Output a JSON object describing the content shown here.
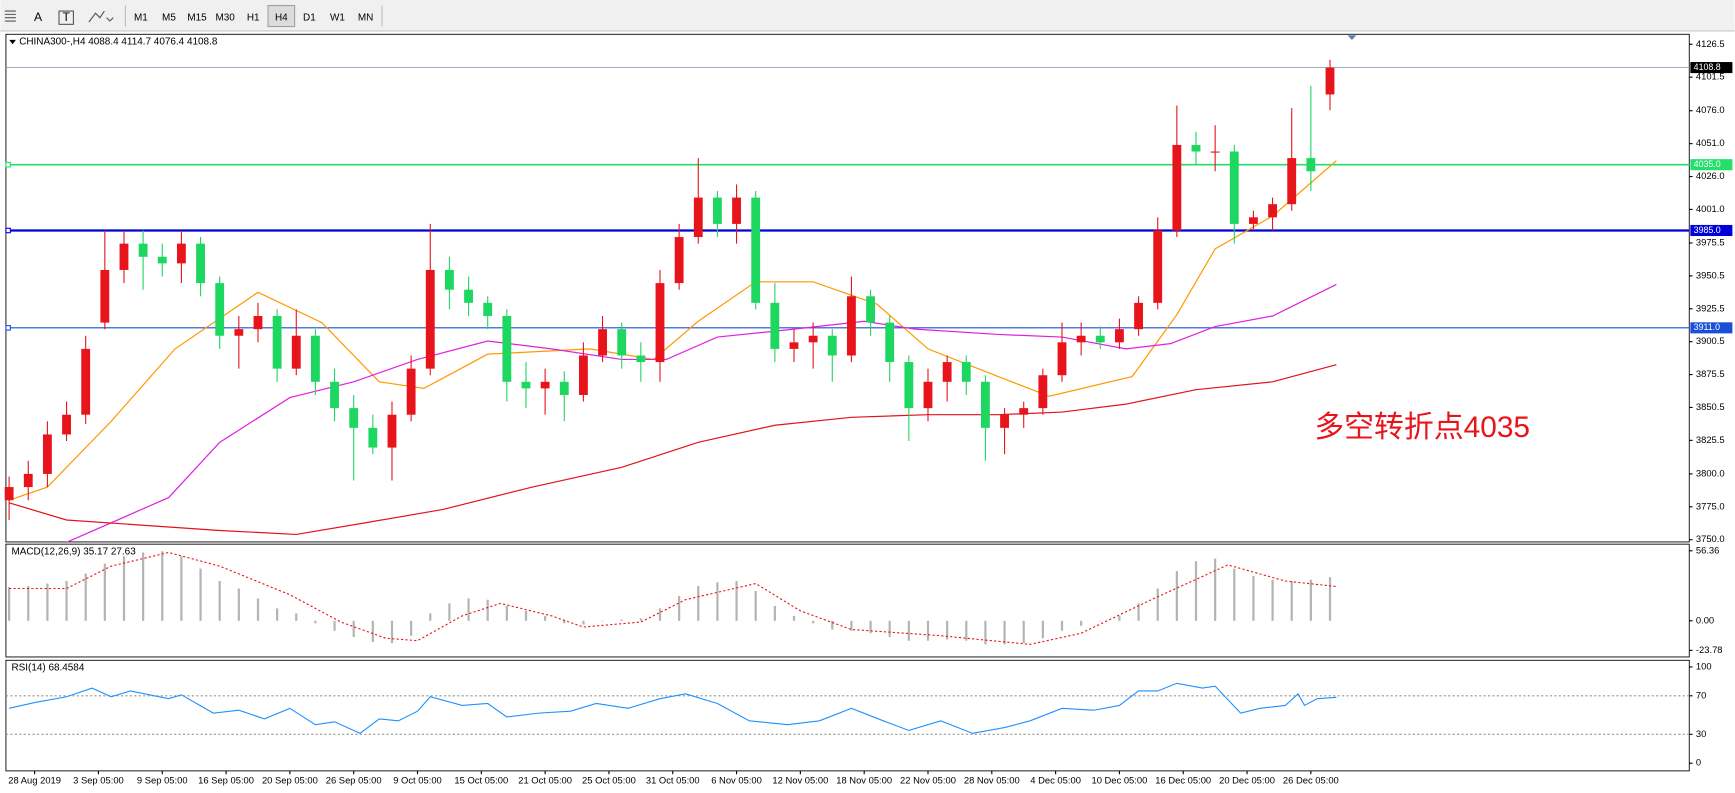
{
  "toolbar": {
    "tools": [
      "A",
      "T"
    ],
    "timeframes": [
      "M1",
      "M5",
      "M15",
      "M30",
      "H1",
      "H4",
      "D1",
      "W1",
      "MN"
    ]
  },
  "chart_data": [
    {
      "type": "candlestick",
      "title": "CHINA300-,H4  4088.4 4114.7 4076.4 4108.8",
      "x": [
        0,
        3,
        6,
        9,
        12,
        15,
        18,
        21,
        24,
        27,
        30,
        33,
        36,
        39,
        42,
        45,
        48,
        51,
        54,
        57,
        60,
        63,
        66,
        69,
        72,
        75,
        78,
        81,
        84,
        87,
        90,
        93,
        96,
        99,
        102,
        105,
        108,
        111,
        114,
        117,
        120,
        123,
        126,
        129,
        132,
        135,
        138,
        141,
        144,
        147,
        150,
        153,
        156,
        159,
        162,
        165,
        168,
        171,
        174,
        177,
        180,
        183,
        186,
        189,
        192,
        195,
        198,
        201,
        204,
        207
      ],
      "open": [
        3780,
        3790,
        3800,
        3830,
        3845,
        3915,
        3955,
        3975,
        3965,
        3960,
        3975,
        3945,
        3905,
        3910,
        3920,
        3880,
        3905,
        3870,
        3850,
        3835,
        3820,
        3845,
        3880,
        3955,
        3940,
        3930,
        3920,
        3870,
        3865,
        3870,
        3860,
        3890,
        3910,
        3890,
        3885,
        3945,
        3980,
        4010,
        3990,
        4010,
        3930,
        3895,
        3900,
        3905,
        3890,
        3935,
        3915,
        3885,
        3850,
        3870,
        3885,
        3870,
        3835,
        3845,
        3850,
        3875,
        3900,
        3905,
        3900,
        3910,
        3930,
        3985,
        4050,
        4045,
        4045,
        3990,
        3995,
        4005,
        4040,
        4088.4
      ],
      "high": [
        3798,
        3810,
        3840,
        3855,
        3905,
        3985,
        3985,
        3985,
        3975,
        3985,
        3980,
        3950,
        3920,
        3930,
        3925,
        3925,
        3910,
        3880,
        3860,
        3845,
        3855,
        3890,
        3990,
        3965,
        3950,
        3935,
        3925,
        3885,
        3880,
        3878,
        3900,
        3920,
        3915,
        3900,
        3955,
        3990,
        4040,
        4015,
        4020,
        4015,
        3945,
        3910,
        3915,
        3910,
        3950,
        3940,
        3920,
        3890,
        3880,
        3890,
        3890,
        3875,
        3850,
        3855,
        3880,
        3915,
        3915,
        3912,
        3918,
        3935,
        3995,
        4080,
        4060,
        4065,
        4050,
        4000,
        4010,
        4078,
        4095,
        4114.7
      ],
      "low": [
        3765,
        3780,
        3790,
        3825,
        3838,
        3910,
        3945,
        3940,
        3950,
        3945,
        3935,
        3895,
        3880,
        3900,
        3870,
        3875,
        3860,
        3840,
        3795,
        3815,
        3795,
        3840,
        3875,
        3925,
        3920,
        3910,
        3855,
        3850,
        3845,
        3840,
        3855,
        3885,
        3880,
        3870,
        3870,
        3940,
        3975,
        3980,
        3975,
        3925,
        3885,
        3885,
        3880,
        3870,
        3885,
        3905,
        3870,
        3825,
        3840,
        3855,
        3860,
        3810,
        3815,
        3835,
        3845,
        3870,
        3890,
        3895,
        3895,
        3905,
        3925,
        3980,
        4035,
        4030,
        3975,
        3985,
        3985,
        4000,
        4015,
        4076.4
      ],
      "close": [
        3790,
        3800,
        3830,
        3845,
        3895,
        3955,
        3975,
        3965,
        3960,
        3975,
        3945,
        3905,
        3910,
        3920,
        3880,
        3905,
        3870,
        3850,
        3835,
        3820,
        3845,
        3880,
        3955,
        3940,
        3930,
        3920,
        3870,
        3865,
        3870,
        3860,
        3890,
        3910,
        3890,
        3885,
        3945,
        3980,
        4010,
        3990,
        4010,
        3930,
        3895,
        3900,
        3905,
        3890,
        3935,
        3915,
        3885,
        3850,
        3870,
        3885,
        3870,
        3835,
        3845,
        3850,
        3875,
        3900,
        3905,
        3900,
        3910,
        3930,
        3985,
        4050,
        4045,
        4045,
        3990,
        3995,
        4005,
        4040,
        4030,
        4108.8
      ],
      "up_color": "#e8141b",
      "down_color": "#1ed760",
      "lines": [
        {
          "color": "#ff9900",
          "x": [
            0,
            6,
            16,
            26,
            39,
            49,
            58,
            65,
            75,
            91,
            101,
            108,
            117,
            126,
            136,
            144,
            155,
            163,
            176,
            183,
            189,
            198,
            208
          ],
          "values": [
            3780,
            3790,
            3840,
            3895,
            3938,
            3915,
            3870,
            3865,
            3891,
            3895,
            3887,
            3916,
            3946,
            3946,
            3929,
            3895,
            3874,
            3859,
            3874,
            3921,
            3971,
            3996,
            4038
          ]
        },
        {
          "color": "#e020e0",
          "x": [
            9,
            25,
            33,
            44,
            54,
            64,
            75,
            85,
            96,
            103,
            111,
            123,
            134,
            142,
            155,
            165,
            175,
            182,
            189,
            198,
            208
          ],
          "values": [
            3748,
            3782,
            3824,
            3858,
            3870,
            3887,
            3901,
            3895,
            3887,
            3887,
            3904,
            3910,
            3916,
            3910,
            3906,
            3904,
            3895,
            3899,
            3912,
            3920,
            3944
          ]
        },
        {
          "color": "#e0141b",
          "x": [
            0,
            9,
            21,
            33,
            45,
            56,
            68,
            82,
            96,
            108,
            120,
            132,
            144,
            155,
            165,
            175,
            186,
            198,
            208
          ],
          "values": [
            3778,
            3765,
            3761,
            3757,
            3754,
            3763,
            3773,
            3790,
            3805,
            3824,
            3837,
            3843,
            3845,
            3845,
            3847,
            3853,
            3864,
            3870,
            3883
          ]
        }
      ],
      "levels": [
        {
          "value": 4035,
          "label": "4035.0",
          "color": "#22e06a",
          "width": 1.5
        },
        {
          "value": 3985,
          "label": "3985.0",
          "color": "#0000d8",
          "width": 2
        },
        {
          "value": 3911,
          "label": "3911.0",
          "color": "#1a4fd6",
          "width": 1
        }
      ],
      "last_price": 4108.8,
      "annotation": "多空转折点4035",
      "annotation_color": "#e8141b",
      "xlim": [
        -0.5,
        263.3
      ],
      "ylim": [
        3748.3,
        4134.1
      ],
      "yticks": [
        4126.5,
        4101.5,
        {
          "value": 4076,
          "label": "4076.0"
        },
        {
          "value": 4051,
          "label": "4051.0"
        },
        {
          "value": 4026,
          "label": "4026.0"
        },
        {
          "value": 4001,
          "label": "4001.0"
        },
        3975.5,
        3950.5,
        3925.5,
        3900.5,
        3875.5,
        3850.5,
        3825.5,
        {
          "value": 3800,
          "label": "3800.0"
        },
        {
          "value": 3775,
          "label": "3775.0"
        },
        {
          "value": 3750,
          "label": "3750.0"
        }
      ]
    },
    {
      "type": "macd",
      "title": "MACD(12,26,9) 35.17 27.63",
      "x": [
        0,
        3,
        6,
        9,
        12,
        15,
        18,
        21,
        24,
        27,
        30,
        33,
        36,
        39,
        42,
        45,
        48,
        51,
        54,
        57,
        60,
        63,
        66,
        69,
        72,
        75,
        78,
        81,
        84,
        87,
        90,
        93,
        96,
        99,
        102,
        105,
        108,
        111,
        114,
        117,
        120,
        123,
        126,
        129,
        132,
        135,
        138,
        141,
        144,
        147,
        150,
        153,
        156,
        159,
        162,
        165,
        168,
        171,
        174,
        177,
        180,
        183,
        186,
        189,
        192,
        195,
        198,
        201,
        204,
        207
      ],
      "values": [
        27,
        28,
        30,
        32,
        38,
        46,
        52,
        55,
        56,
        52,
        42,
        32,
        26,
        18,
        10,
        6,
        -2,
        -8,
        -13,
        -17,
        -18,
        -12,
        6,
        14,
        18,
        17,
        12,
        8,
        4,
        -2,
        -3,
        0,
        1,
        2,
        10,
        20,
        28,
        31,
        32,
        24,
        12,
        4,
        -2,
        -7,
        -8,
        -10,
        -13,
        -16,
        -16,
        -15,
        -16,
        -19,
        -19,
        -18,
        -14,
        -8,
        -4,
        0,
        4,
        14,
        26,
        40,
        48,
        50,
        42,
        36,
        33,
        32,
        33,
        35.17
      ],
      "color": "#b4b4b4",
      "signal": {
        "color": "#e8141b",
        "x": [
          0,
          9,
          16,
          25,
          33,
          44,
          52,
          59,
          64,
          71,
          77,
          85,
          90,
          99,
          106,
          117,
          124,
          132,
          146,
          160,
          168,
          179,
          191,
          200,
          208
        ],
        "values": [
          26,
          26,
          44,
          55,
          44,
          21,
          -1,
          -14,
          -16,
          4,
          14,
          4,
          -5,
          -1,
          17,
          30,
          8,
          -7,
          -12,
          -19,
          -10,
          17,
          45,
          32,
          27.63
        ]
      },
      "xlim": [
        -0.5,
        263.3
      ],
      "ylim": [
        -29.1,
        61.7
      ],
      "yticks": [
        56.36,
        {
          "value": 0,
          "label": "0.00"
        },
        -23.78
      ]
    },
    {
      "type": "line",
      "title": "RSI(14) 68.4584",
      "x": [
        0,
        4,
        9,
        13,
        16,
        19,
        25,
        27,
        32,
        36,
        40,
        44,
        48,
        51,
        55,
        58,
        61,
        64,
        66,
        71,
        75,
        78,
        83,
        88,
        92,
        97,
        102,
        106,
        111,
        116,
        122,
        127,
        132,
        137,
        141,
        146,
        151,
        156,
        160,
        165,
        170,
        174,
        177,
        180,
        183,
        187,
        189,
        193,
        196,
        200,
        202,
        203,
        205,
        208
      ],
      "values": [
        57,
        63,
        69,
        78,
        69,
        75,
        67,
        71,
        52,
        55,
        46,
        57,
        40,
        43,
        31,
        46,
        44,
        54,
        69,
        60,
        62,
        48,
        52,
        54,
        62,
        57,
        67,
        72,
        62,
        44,
        40,
        44,
        57,
        44,
        34,
        44,
        31,
        37,
        44,
        57,
        55,
        60,
        75,
        75,
        83,
        78,
        80,
        52,
        57,
        60,
        72,
        60,
        67,
        68.4584
      ],
      "color": "#1e90ff",
      "levels": [
        70,
        30
      ],
      "xlim": [
        -0.5,
        263.3
      ],
      "ylim": [
        -8,
        106.9
      ],
      "yticks": [
        100,
        70,
        30,
        0
      ],
      "xticks": [
        {
          "value": 4,
          "label": "28 Aug 2019"
        },
        {
          "value": 14,
          "label": "3 Sep 05:00"
        },
        {
          "value": 24,
          "label": "9 Sep 05:00"
        },
        {
          "value": 34,
          "label": "16 Sep 05:00"
        },
        {
          "value": 44,
          "label": "20 Sep 05:00"
        },
        {
          "value": 54,
          "label": "26 Sep 05:00"
        },
        {
          "value": 64,
          "label": "9 Oct 05:00"
        },
        {
          "value": 74,
          "label": "15 Oct 05:00"
        },
        {
          "value": 84,
          "label": "21 Oct 05:00"
        },
        {
          "value": 94,
          "label": "25 Oct 05:00"
        },
        {
          "value": 104,
          "label": "31 Oct 05:00"
        },
        {
          "value": 114,
          "label": "6 Nov 05:00"
        },
        {
          "value": 124,
          "label": "12 Nov 05:00"
        },
        {
          "value": 134,
          "label": "18 Nov 05:00"
        },
        {
          "value": 144,
          "label": "22 Nov 05:00"
        },
        {
          "value": 154,
          "label": "28 Nov 05:00"
        },
        {
          "value": 164,
          "label": "4 Dec 05:00"
        },
        {
          "value": 174,
          "label": "10 Dec 05:00"
        },
        {
          "value": 184,
          "label": "16 Dec 05:00"
        },
        {
          "value": 194,
          "label": "20 Dec 05:00"
        },
        {
          "value": 204,
          "label": "26 Dec 05:00"
        }
      ]
    }
  ]
}
